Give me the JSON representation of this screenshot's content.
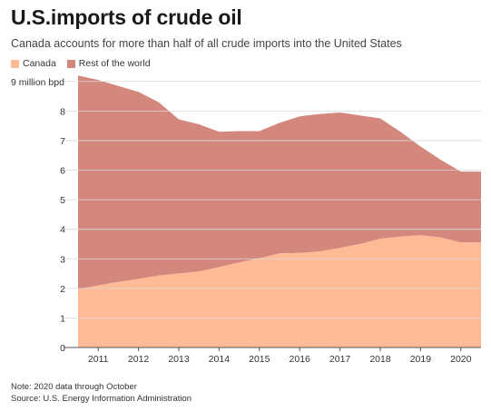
{
  "title": "U.S.imports of crude oil",
  "subtitle": "Canada accounts for more than half of all crude imports into the United States",
  "notes": {
    "note": "Note: 2020 data through October",
    "source": "Source: U.S. Energy Information Administration"
  },
  "colors": {
    "canada": "#ffba96",
    "rest": "#d4877d",
    "grid": "#d9d9d9",
    "axis": "#555555"
  },
  "chart_data": {
    "type": "area",
    "stacked": true,
    "x": [
      2010.5,
      2011,
      2011.5,
      2012,
      2012.5,
      2013,
      2013.5,
      2014,
      2014.5,
      2015,
      2015.5,
      2016,
      2016.5,
      2017,
      2017.5,
      2018,
      2018.5,
      2019,
      2019.5,
      2020,
      2020.5
    ],
    "x_ticks": [
      "2011",
      "2012",
      "2013",
      "2014",
      "2015",
      "2016",
      "2017",
      "2018",
      "2019",
      "2020"
    ],
    "x_tick_values": [
      2011,
      2012,
      2013,
      2014,
      2015,
      2016,
      2017,
      2018,
      2019,
      2020
    ],
    "xlim": [
      2010.5,
      2020.5
    ],
    "y_ticks": [
      "0",
      "1",
      "2",
      "3",
      "4",
      "5",
      "6",
      "7",
      "8",
      "9 million bpd"
    ],
    "y_tick_values": [
      0,
      1,
      2,
      3,
      4,
      5,
      6,
      7,
      8,
      9
    ],
    "ylim": [
      0,
      9.3
    ],
    "grid": true,
    "legend_position": "top-left",
    "series": [
      {
        "name": "Canada",
        "values": [
          1.97,
          2.1,
          2.22,
          2.32,
          2.43,
          2.5,
          2.57,
          2.72,
          2.88,
          3.02,
          3.18,
          3.2,
          3.25,
          3.37,
          3.5,
          3.68,
          3.75,
          3.8,
          3.72,
          3.55,
          3.55
        ]
      },
      {
        "name": "Rest of the world",
        "total": [
          9.2,
          9.05,
          8.85,
          8.65,
          8.3,
          7.72,
          7.55,
          7.3,
          7.32,
          7.32,
          7.6,
          7.82,
          7.9,
          7.95,
          7.85,
          7.75,
          7.3,
          6.8,
          6.35,
          5.95,
          5.95
        ]
      }
    ]
  }
}
